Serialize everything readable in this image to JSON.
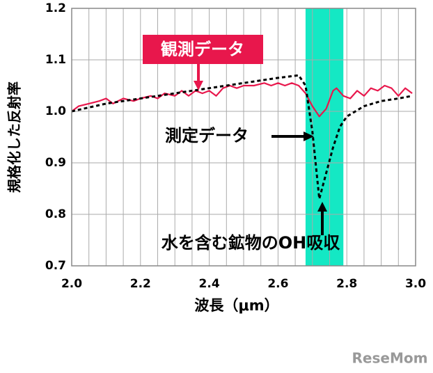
{
  "chart_data": {
    "type": "line",
    "ylabel": "規格化した反射率",
    "xlabel": "波長（μm）",
    "xlim": [
      2.0,
      3.0
    ],
    "ylim": [
      0.7,
      1.2
    ],
    "xticks": [
      {
        "value": 2.0,
        "label": "2.0"
      },
      2.2,
      2.4,
      2.6,
      2.8,
      {
        "value": 3.0,
        "label": "3.0"
      }
    ],
    "yticks": [
      0.7,
      0.8,
      0.9,
      {
        "value": 1.0,
        "label": "1.0"
      },
      1.1,
      1.2
    ],
    "xgrid": [
      2.05,
      2.1,
      2.15,
      2.25,
      2.3,
      2.35,
      2.45,
      2.5,
      2.55,
      2.65,
      2.7,
      2.75,
      2.85,
      2.9,
      2.95
    ],
    "grid": true,
    "band": {
      "x": [
        2.68,
        2.79
      ],
      "color": "#14e8c4"
    },
    "series": [
      {
        "name": "観測データ",
        "color": "#e8174c",
        "dash": false,
        "x": [
          2.0,
          2.02,
          2.05,
          2.08,
          2.1,
          2.12,
          2.15,
          2.18,
          2.2,
          2.23,
          2.25,
          2.27,
          2.3,
          2.32,
          2.34,
          2.36,
          2.38,
          2.4,
          2.42,
          2.44,
          2.46,
          2.48,
          2.5,
          2.53,
          2.56,
          2.58,
          2.6,
          2.62,
          2.64,
          2.66,
          2.68,
          2.7,
          2.72,
          2.74,
          2.76,
          2.77,
          2.79,
          2.81,
          2.83,
          2.85,
          2.87,
          2.89,
          2.91,
          2.93,
          2.95,
          2.97,
          2.99
        ],
        "values": [
          1.0,
          1.01,
          1.015,
          1.02,
          1.025,
          1.015,
          1.025,
          1.02,
          1.025,
          1.03,
          1.025,
          1.035,
          1.03,
          1.04,
          1.03,
          1.04,
          1.035,
          1.04,
          1.03,
          1.045,
          1.05,
          1.045,
          1.05,
          1.05,
          1.055,
          1.05,
          1.055,
          1.05,
          1.055,
          1.05,
          1.035,
          1.01,
          0.99,
          1.005,
          1.04,
          1.045,
          1.03,
          1.025,
          1.04,
          1.03,
          1.045,
          1.04,
          1.05,
          1.045,
          1.03,
          1.045,
          1.035
        ]
      },
      {
        "name": "測定データ",
        "color": "#000000",
        "dash": true,
        "x": [
          2.0,
          2.1,
          2.2,
          2.3,
          2.4,
          2.5,
          2.6,
          2.66,
          2.68,
          2.7,
          2.72,
          2.74,
          2.76,
          2.78,
          2.8,
          2.85,
          2.9,
          2.95,
          2.99
        ],
        "values": [
          1.0,
          1.015,
          1.025,
          1.035,
          1.045,
          1.055,
          1.065,
          1.07,
          1.05,
          0.96,
          0.83,
          0.88,
          0.93,
          0.97,
          0.99,
          1.01,
          1.02,
          1.025,
          1.03
        ]
      }
    ],
    "annotation": "水を含む鉱物のOH吸収",
    "watermark": "ReseMom"
  }
}
